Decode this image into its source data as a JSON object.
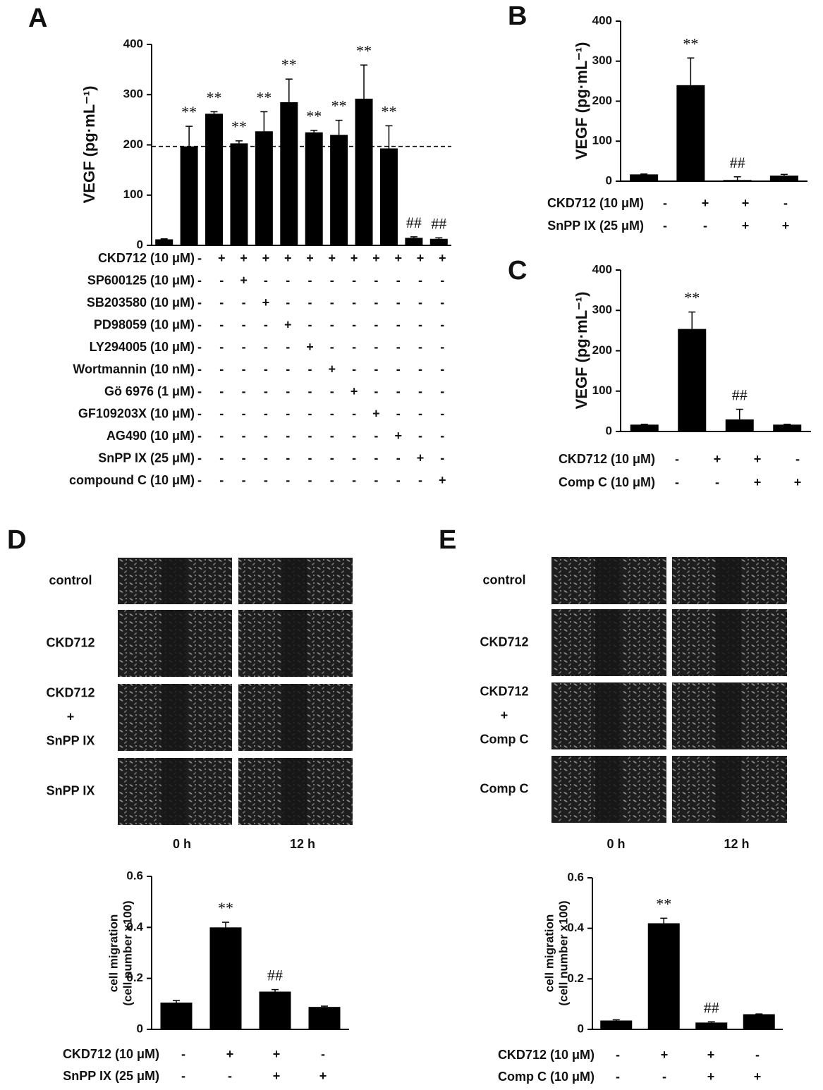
{
  "chart_data": [
    {
      "type": "bar",
      "panel": "A",
      "ylabel": "VEGF (pg·mL⁻¹)",
      "color": "#000000",
      "values": [
        12,
        197,
        262,
        203,
        227,
        285,
        225,
        220,
        292,
        193,
        15,
        13
      ],
      "errors": [
        1,
        40,
        4,
        5,
        39,
        46,
        4,
        29,
        67,
        45,
        2,
        2
      ],
      "annotations": [
        null,
        "**",
        "**",
        "**",
        "**",
        "**",
        "**",
        "**",
        "**",
        "**",
        "##",
        "##"
      ],
      "ylim": [
        0,
        400
      ],
      "yticks": [
        0,
        100,
        200,
        300,
        400
      ],
      "reference_line": 197,
      "conditions": [
        {
          "label": "CKD712 (10 μM)",
          "signs": [
            "-",
            "+",
            "+",
            "+",
            "+",
            "+",
            "+",
            "+",
            "+",
            "+",
            "+",
            "+"
          ]
        },
        {
          "label": "SP600125 (10 μM)",
          "signs": [
            "-",
            "-",
            "+",
            "-",
            "-",
            "-",
            "-",
            "-",
            "-",
            "-",
            "-",
            "-"
          ]
        },
        {
          "label": "SB203580 (10 μM)",
          "signs": [
            "-",
            "-",
            "-",
            "+",
            "-",
            "-",
            "-",
            "-",
            "-",
            "-",
            "-",
            "-"
          ]
        },
        {
          "label": "PD98059 (10 μM)",
          "signs": [
            "-",
            "-",
            "-",
            "-",
            "+",
            "-",
            "-",
            "-",
            "-",
            "-",
            "-",
            "-"
          ]
        },
        {
          "label": "LY294005 (10 μM)",
          "signs": [
            "-",
            "-",
            "-",
            "-",
            "-",
            "+",
            "-",
            "-",
            "-",
            "-",
            "-",
            "-"
          ]
        },
        {
          "label": "Wortmannin (10 nM)",
          "signs": [
            "-",
            "-",
            "-",
            "-",
            "-",
            "-",
            "+",
            "-",
            "-",
            "-",
            "-",
            "-"
          ]
        },
        {
          "label": "Gö 6976 (1 μM)",
          "signs": [
            "-",
            "-",
            "-",
            "-",
            "-",
            "-",
            "-",
            "+",
            "-",
            "-",
            "-",
            "-"
          ]
        },
        {
          "label": "GF109203X (10 μM)",
          "signs": [
            "-",
            "-",
            "-",
            "-",
            "-",
            "-",
            "-",
            "-",
            "+",
            "-",
            "-",
            "-"
          ]
        },
        {
          "label": "AG490 (10 μM)",
          "signs": [
            "-",
            "-",
            "-",
            "-",
            "-",
            "-",
            "-",
            "-",
            "-",
            "+",
            "-",
            "-"
          ]
        },
        {
          "label": "SnPP IX (25 μM)",
          "signs": [
            "-",
            "-",
            "-",
            "-",
            "-",
            "-",
            "-",
            "-",
            "-",
            "-",
            "+",
            "-"
          ]
        },
        {
          "label": "compound C (10 μM)",
          "signs": [
            "-",
            "-",
            "-",
            "-",
            "-",
            "-",
            "-",
            "-",
            "-",
            "-",
            "-",
            "+"
          ]
        }
      ]
    },
    {
      "type": "bar",
      "panel": "B",
      "ylabel": "VEGF (pg·mL⁻¹)",
      "color": "#000000",
      "values": [
        17,
        240,
        3,
        14
      ],
      "errors": [
        1,
        68,
        8,
        3
      ],
      "annotations": [
        null,
        "**",
        "##",
        null
      ],
      "ylim": [
        0,
        400
      ],
      "yticks": [
        0,
        100,
        200,
        300,
        400
      ],
      "conditions": [
        {
          "label": "CKD712 (10 μM)",
          "signs": [
            "-",
            "+",
            "+",
            "-"
          ]
        },
        {
          "label": "SnPP IX (25 μM)",
          "signs": [
            "-",
            "-",
            "+",
            "+"
          ]
        }
      ]
    },
    {
      "type": "bar",
      "panel": "C",
      "ylabel": "VEGF (pg·mL⁻¹)",
      "color": "#000000",
      "values": [
        17,
        254,
        30,
        17
      ],
      "errors": [
        1,
        42,
        25,
        1
      ],
      "annotations": [
        null,
        "**",
        "##",
        null
      ],
      "ylim": [
        0,
        400
      ],
      "yticks": [
        0,
        100,
        200,
        300,
        400
      ],
      "conditions": [
        {
          "label": "CKD712 (10 μM)",
          "signs": [
            "-",
            "+",
            "+",
            "-"
          ]
        },
        {
          "label": "Comp C (10 μM)",
          "signs": [
            "-",
            "-",
            "+",
            "+"
          ]
        }
      ]
    },
    {
      "type": "bar",
      "panel": "D",
      "ylabel": [
        "cell migration",
        "(cell number x100)"
      ],
      "color": "#000000",
      "values": [
        0.105,
        0.4,
        0.148,
        0.088
      ],
      "errors": [
        0.008,
        0.02,
        0.008,
        0.003
      ],
      "annotations": [
        null,
        "**",
        "##",
        null
      ],
      "ylim": [
        0,
        0.6
      ],
      "yticks": [
        0,
        0.2,
        0.4,
        0.6
      ],
      "conditions": [
        {
          "label": "CKD712 (10 μM)",
          "signs": [
            "-",
            "+",
            "+",
            "-"
          ]
        },
        {
          "label": "SnPP IX (25 μM)",
          "signs": [
            "-",
            "-",
            "+",
            "+"
          ]
        }
      ]
    },
    {
      "type": "bar",
      "panel": "E",
      "ylabel": [
        "cell migration",
        "(cell number x100)"
      ],
      "color": "#000000",
      "values": [
        0.035,
        0.42,
        0.027,
        0.06
      ],
      "errors": [
        0.003,
        0.02,
        0.003,
        0.001
      ],
      "annotations": [
        null,
        "**",
        "##",
        null
      ],
      "ylim": [
        0,
        0.6
      ],
      "yticks": [
        0,
        0.2,
        0.4,
        0.6
      ],
      "conditions": [
        {
          "label": "CKD712 (10 μM)",
          "signs": [
            "-",
            "+",
            "+",
            "-"
          ]
        },
        {
          "label": "Comp C (10 μM)",
          "signs": [
            "-",
            "-",
            "+",
            "+"
          ]
        }
      ]
    }
  ],
  "micrographs": [
    {
      "row_labels": [
        [
          "control"
        ],
        [
          "CKD712"
        ],
        [
          "CKD712",
          "+",
          "SnPP IX"
        ],
        [
          "SnPP IX"
        ]
      ],
      "col_labels": [
        "0 h",
        "12 h"
      ]
    },
    {
      "row_labels": [
        [
          "control"
        ],
        [
          "CKD712"
        ],
        [
          "CKD712",
          "+",
          "Comp C"
        ],
        [
          "Comp C"
        ]
      ],
      "col_labels": [
        "0 h",
        "12 h"
      ]
    }
  ]
}
